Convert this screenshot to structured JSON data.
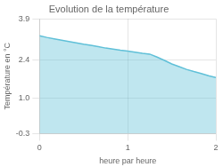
{
  "chart_data": {
    "type": "area",
    "title": "Evolution de la température",
    "xlabel": "heure par heure",
    "ylabel": "Température en °C",
    "x": [
      0.0,
      0.083,
      0.167,
      0.25,
      0.333,
      0.417,
      0.5,
      0.583,
      0.667,
      0.75,
      0.833,
      0.917,
      1.0,
      1.083,
      1.167,
      1.25,
      1.333,
      1.417,
      1.5,
      1.583,
      1.667,
      1.75,
      1.833,
      1.917,
      2.0
    ],
    "values": [
      3.28,
      3.22,
      3.17,
      3.12,
      3.07,
      3.02,
      2.97,
      2.93,
      2.88,
      2.83,
      2.79,
      2.75,
      2.72,
      2.68,
      2.64,
      2.61,
      2.5,
      2.38,
      2.25,
      2.15,
      2.05,
      1.97,
      1.9,
      1.82,
      1.75
    ],
    "color": "#60c0d8",
    "xlim": [
      0,
      2
    ],
    "ylim": [
      -0.3,
      3.9
    ],
    "xticks": [
      0,
      1,
      2
    ],
    "yticks": [
      -0.3,
      {
        "value": 1.0,
        "label": "1.0"
      },
      2.4,
      3.9
    ],
    "grid": true
  }
}
